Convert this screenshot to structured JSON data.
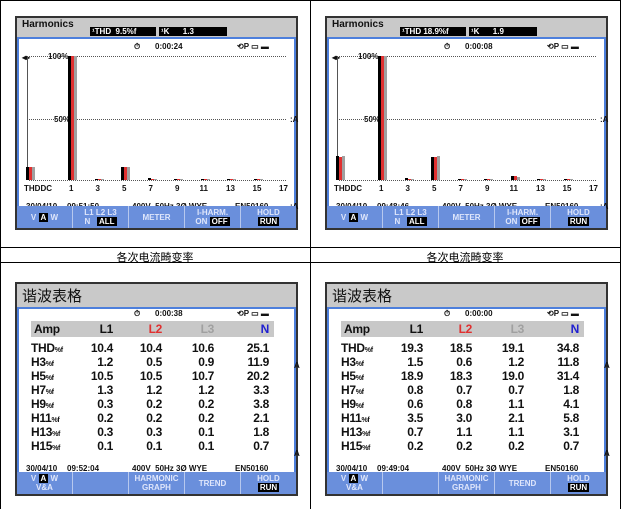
{
  "captions": [
    "各次电流畸变率",
    "各次电流畸变率"
  ],
  "colors": {
    "l1": "#000000",
    "l2": "#e03030",
    "l3": "#a0a0a0",
    "n": "#2020d0",
    "button_bar": "#6a8fdc",
    "header": "#c9c9c9"
  },
  "top_screens": [
    {
      "title": "Harmonics",
      "thd": "¹THD  9.5%f",
      "k": "¹K      1.3",
      "timer": "0:00:24",
      "timer_icon": "stopwatch-icon",
      "status_icons": "⟲P ▭ ▬",
      "label_100": "100%",
      "label_50": "50%",
      "unit_a": ":A",
      "unit_a2": ":A",
      "x_labels": [
        "THDDC",
        "1",
        "3",
        "5",
        "7",
        "9",
        "11",
        "13",
        "15",
        "17"
      ],
      "date": "30/04/10",
      "time": "09:51:50",
      "supply": "400V  50Hz 3Ø WYE",
      "standard": "EN50160",
      "buttons": {
        "v": "V",
        "a": "A",
        "w": "W",
        "l1l2l3": "L1 L2 L3",
        "n": "N",
        "all": "ALL",
        "meter": "METER",
        "iharm": "I-HARM.",
        "on": "ON",
        "off": "OFF",
        "hold": "HOLD",
        "run": "RUN"
      }
    },
    {
      "title": "Harmonics",
      "thd": "¹THD 18.9%f",
      "k": "¹K      1.9",
      "timer": "0:00:08",
      "timer_icon": "stopwatch-icon",
      "status_icons": "⟲P ▭ ▬",
      "label_100": "100%",
      "label_50": "50%",
      "unit_a": ":A",
      "unit_a2": ":A",
      "x_labels": [
        "THDDC",
        "1",
        "3",
        "5",
        "7",
        "9",
        "11",
        "13",
        "15",
        "17"
      ],
      "date": "30/04/10",
      "time": "09:48:46",
      "supply": "400V  50Hz 3Ø WYE",
      "standard": "EN50160",
      "buttons": {
        "v": "V",
        "a": "A",
        "w": "W",
        "l1l2l3": "L1 L2 L3",
        "n": "N",
        "all": "ALL",
        "meter": "METER",
        "iharm": "I-HARM.",
        "on": "ON",
        "off": "OFF",
        "hold": "HOLD",
        "run": "RUN"
      }
    }
  ],
  "bottom_screens": [
    {
      "title": "谐波表格",
      "timer": "0:00:38",
      "status_icons": "⟲P ▭ ▬",
      "unit_a": "A",
      "unit_a2": "A",
      "columns": [
        "Amp",
        "L1",
        "L2",
        "L3",
        "N"
      ],
      "rows": [
        {
          "label": "THD",
          "unit": "%f",
          "values": [
            "10.4",
            "10.4",
            "10.6",
            "25.1"
          ]
        },
        {
          "label": "H3",
          "unit": "%f",
          "values": [
            "1.2",
            "0.5",
            "0.9",
            "11.9"
          ]
        },
        {
          "label": "H5",
          "unit": "%f",
          "values": [
            "10.5",
            "10.5",
            "10.7",
            "20.2"
          ]
        },
        {
          "label": "H7",
          "unit": "%f",
          "values": [
            "1.3",
            "1.2",
            "1.2",
            "3.3"
          ]
        },
        {
          "label": "H9",
          "unit": "%f",
          "values": [
            "0.3",
            "0.2",
            "0.2",
            "3.8"
          ]
        },
        {
          "label": "H11",
          "unit": "%f",
          "values": [
            "0.2",
            "0.2",
            "0.2",
            "2.1"
          ]
        },
        {
          "label": "H13",
          "unit": "%f",
          "values": [
            "0.3",
            "0.3",
            "0.1",
            "1.8"
          ]
        },
        {
          "label": "H15",
          "unit": "%f",
          "values": [
            "0.1",
            "0.1",
            "0.1",
            "0.7"
          ]
        }
      ],
      "date": "30/04/10",
      "time": "09:52:04",
      "supply": "400V  50Hz 3Ø WYE",
      "standard": "EN50160",
      "buttons": {
        "v": "V",
        "a": "A",
        "w": "W",
        "va": "V&A",
        "harmonic": "HARMONIC",
        "graph": "GRAPH",
        "trend": "TREND",
        "hold": "HOLD",
        "run": "RUN"
      }
    },
    {
      "title": "谐波表格",
      "timer": "0:00:00",
      "status_icons": "⟲P ▭ ▬",
      "unit_a": "A",
      "unit_a2": "A",
      "columns": [
        "Amp",
        "L1",
        "L2",
        "L3",
        "N"
      ],
      "rows": [
        {
          "label": "THD",
          "unit": "%f",
          "values": [
            "19.3",
            "18.5",
            "19.1",
            "34.8"
          ]
        },
        {
          "label": "H3",
          "unit": "%f",
          "values": [
            "1.5",
            "0.6",
            "1.2",
            "11.8"
          ]
        },
        {
          "label": "H5",
          "unit": "%f",
          "values": [
            "18.9",
            "18.3",
            "19.0",
            "31.4"
          ]
        },
        {
          "label": "H7",
          "unit": "%f",
          "values": [
            "0.8",
            "0.7",
            "0.7",
            "1.8"
          ]
        },
        {
          "label": "H9",
          "unit": "%f",
          "values": [
            "0.6",
            "0.8",
            "1.1",
            "4.1"
          ]
        },
        {
          "label": "H11",
          "unit": "%f",
          "values": [
            "3.5",
            "3.0",
            "2.1",
            "5.8"
          ]
        },
        {
          "label": "H13",
          "unit": "%f",
          "values": [
            "0.7",
            "1.1",
            "1.1",
            "3.1"
          ]
        },
        {
          "label": "H15",
          "unit": "%f",
          "values": [
            "0.2",
            "0.2",
            "0.2",
            "0.7"
          ]
        }
      ],
      "date": "30/04/10",
      "time": "09:49:04",
      "supply": "400V  50Hz 3Ø WYE",
      "standard": "EN50160",
      "buttons": {
        "v": "V",
        "a": "A",
        "w": "W",
        "va": "V&A",
        "harmonic": "HARMONIC",
        "graph": "GRAPH",
        "trend": "TREND",
        "hold": "HOLD",
        "run": "RUN"
      }
    }
  ],
  "chart_data": [
    {
      "type": "bar",
      "ylim": [
        0,
        100
      ],
      "grid": true,
      "categories": [
        "THD",
        "1",
        "3",
        "5",
        "7",
        "9",
        "11",
        "13",
        "15"
      ],
      "series": [
        {
          "values": [
            10.4,
            100,
            1.2,
            10.5,
            1.3,
            0.3,
            0.2,
            0.3,
            0.1
          ]
        },
        {
          "values": [
            10.4,
            100,
            0.5,
            10.5,
            1.2,
            0.2,
            0.2,
            0.3,
            0.1
          ]
        },
        {
          "values": [
            10.6,
            100,
            0.9,
            10.7,
            1.2,
            0.2,
            0.2,
            0.1,
            0.1
          ]
        }
      ]
    },
    {
      "type": "bar",
      "ylim": [
        0,
        100
      ],
      "grid": true,
      "categories": [
        "THD",
        "1",
        "3",
        "5",
        "7",
        "9",
        "11",
        "13",
        "15"
      ],
      "series": [
        {
          "values": [
            19.3,
            100,
            1.5,
            18.9,
            0.8,
            0.6,
            3.5,
            0.7,
            0.2
          ]
        },
        {
          "values": [
            18.5,
            100,
            0.6,
            18.3,
            0.7,
            0.8,
            3.0,
            1.1,
            0.2
          ]
        },
        {
          "values": [
            19.1,
            100,
            1.2,
            19.0,
            0.7,
            1.1,
            2.1,
            1.1,
            0.2
          ]
        }
      ]
    }
  ]
}
